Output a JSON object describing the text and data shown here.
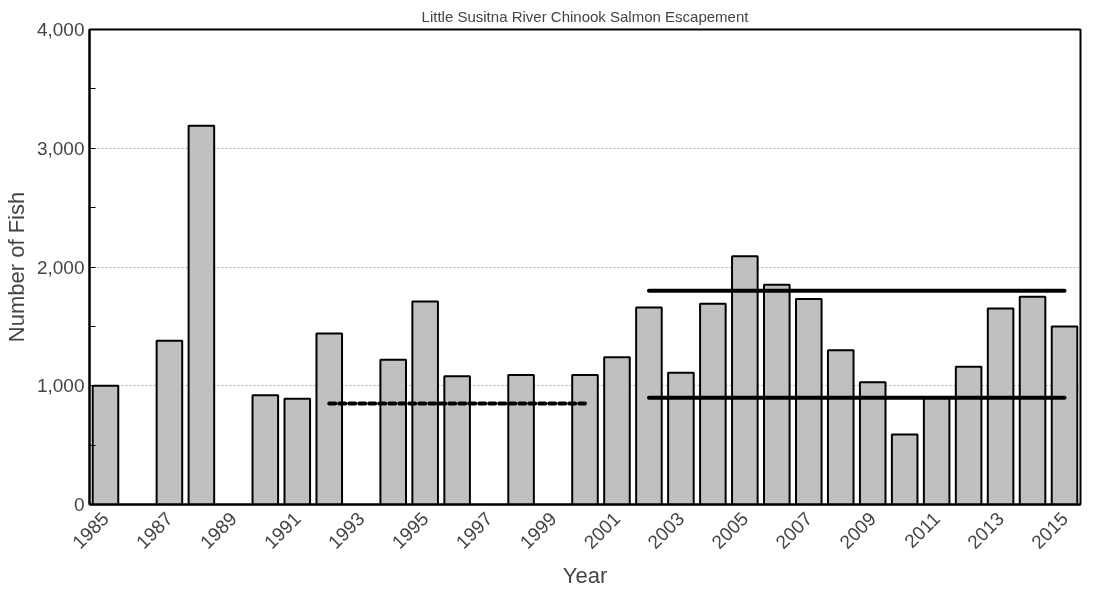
{
  "chart_data": {
    "type": "bar",
    "title": "Little Susitna River Chinook Salmon Escapement",
    "xlabel": "Year",
    "ylabel": "Number of Fish",
    "categories": [
      "1985",
      null,
      "1987",
      null,
      "1989",
      null,
      "1991",
      null,
      "1993",
      null,
      "1995",
      null,
      "1997",
      null,
      "1999",
      null,
      "2001",
      null,
      "2003",
      null,
      "2005",
      null,
      "2007",
      null,
      "2009",
      null,
      "2011",
      null,
      "2013",
      null,
      "2015"
    ],
    "series": [
      {
        "color": "#c0c0c0",
        "values": [
          1000,
          null,
          1380,
          3190,
          null,
          920,
          890,
          1440,
          null,
          1220,
          1710,
          1080,
          null,
          1090,
          null,
          1090,
          1240,
          1660,
          1110,
          1690,
          2090,
          1850,
          1730,
          1300,
          1030,
          590,
          900,
          1160,
          1650,
          1750,
          1500
        ]
      },
      {
        "type": "line",
        "color": "#000000",
        "line_style": "dashed",
        "values": [
          null,
          null,
          null,
          null,
          null,
          null,
          null,
          850,
          850,
          850,
          850,
          850,
          850,
          850,
          850,
          850,
          null,
          null,
          null,
          null,
          null,
          null,
          null,
          null,
          null,
          null,
          null,
          null,
          null,
          null,
          null
        ]
      },
      {
        "type": "line",
        "color": "#000000",
        "line_style": "solid",
        "values": [
          null,
          null,
          null,
          null,
          null,
          null,
          null,
          null,
          null,
          null,
          null,
          null,
          null,
          null,
          null,
          null,
          null,
          1800,
          1800,
          1800,
          1800,
          1800,
          1800,
          1800,
          1800,
          1800,
          1800,
          1800,
          1800,
          1800,
          1800
        ]
      },
      {
        "type": "line",
        "color": "#000000",
        "line_style": "solid",
        "values": [
          null,
          null,
          null,
          null,
          null,
          null,
          null,
          null,
          null,
          null,
          null,
          null,
          null,
          null,
          null,
          null,
          null,
          900,
          900,
          900,
          900,
          900,
          900,
          900,
          900,
          900,
          900,
          900,
          900,
          900,
          900
        ]
      }
    ],
    "ylim": [
      0,
      4000
    ],
    "yticks": [
      {
        "value": 0,
        "label": "0"
      },
      {
        "value": 500,
        "label": null
      },
      {
        "value": 1000,
        "label": "1,000"
      },
      {
        "value": 1500,
        "label": null
      },
      {
        "value": 2000,
        "label": "2,000"
      },
      {
        "value": 2500,
        "label": null
      },
      {
        "value": 3000,
        "label": "3,000"
      },
      {
        "value": 3500,
        "label": null
      },
      {
        "value": 4000,
        "label": "4,000"
      }
    ],
    "grid": "y"
  }
}
